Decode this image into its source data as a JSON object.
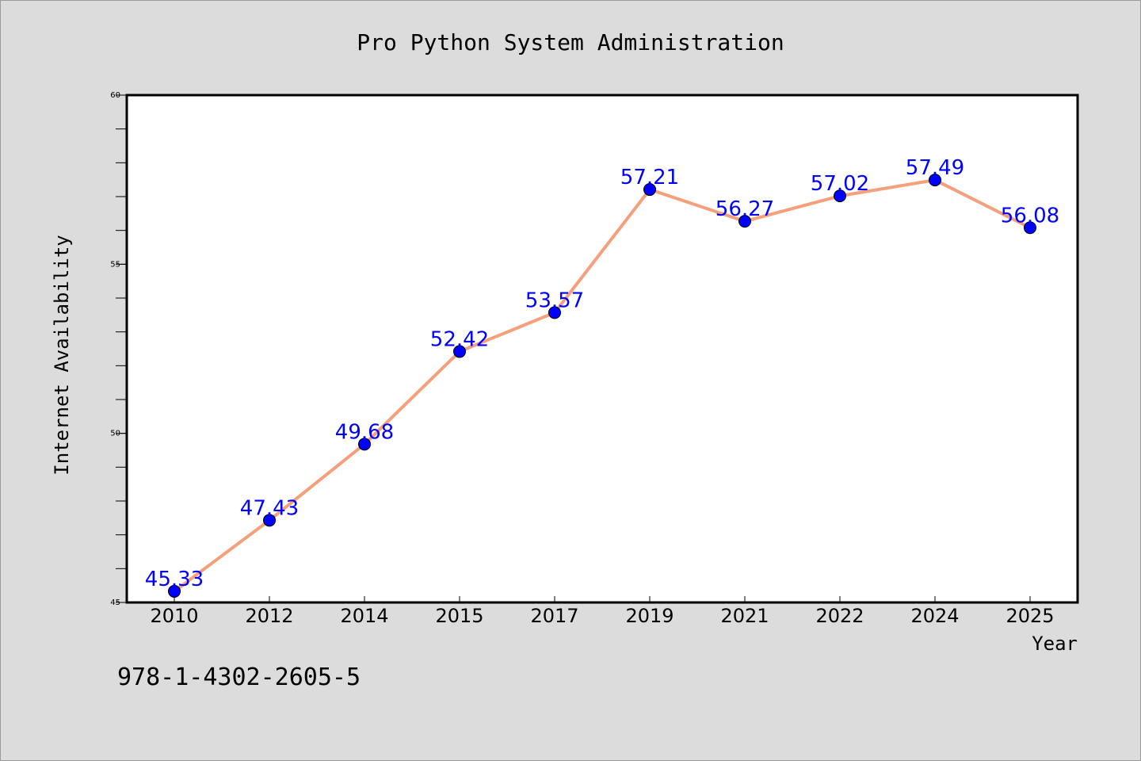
{
  "chart_data": {
    "type": "line",
    "title": "Pro Python System Administration",
    "xlabel": "Year",
    "ylabel": "Internet Availability",
    "categories": [
      "2010",
      "2012",
      "2014",
      "2015",
      "2017",
      "2019",
      "2021",
      "2022",
      "2024",
      "2025"
    ],
    "values": [
      45.33,
      47.43,
      49.68,
      52.42,
      53.57,
      57.21,
      56.27,
      57.02,
      57.49,
      56.08
    ],
    "data_labels": [
      "45.33",
      "47.43",
      "49.68",
      "52.42",
      "53.57",
      "57.21",
      "56.27",
      "57.02",
      "57.49",
      "56.08"
    ],
    "ylim": [
      45,
      60
    ],
    "yticks": [
      "45",
      "50",
      "55",
      "60"
    ],
    "grid": false,
    "line_color": "#f5a07a",
    "marker_color": "#0000ff",
    "label_color": "#0000ff",
    "background_color": "#dcdcdc",
    "plot_background": "#ffffff"
  },
  "footer": {
    "isbn": "978-1-4302-2605-5"
  }
}
